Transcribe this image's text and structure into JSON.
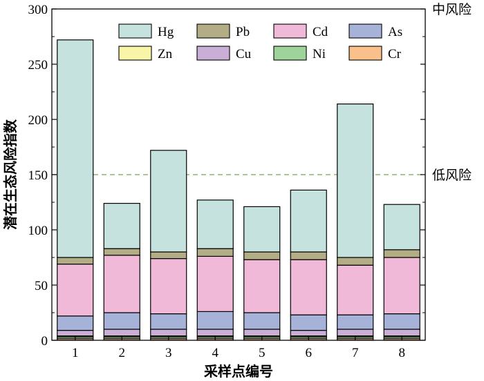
{
  "chart_data": {
    "type": "bar",
    "stacked": true,
    "xlabel": "采样点编号",
    "ylabel": "潜在生态风险指数",
    "ylim": [
      0,
      300
    ],
    "yticks": [
      0,
      50,
      100,
      150,
      200,
      250,
      300
    ],
    "categories": [
      "1",
      "2",
      "3",
      "4",
      "5",
      "6",
      "7",
      "8"
    ],
    "series": [
      {
        "name": "Cr",
        "color": "#f9c08c",
        "values": [
          1.5,
          1.5,
          1.5,
          1.5,
          1.5,
          1.5,
          1.5,
          1.5
        ]
      },
      {
        "name": "Ni",
        "color": "#9ed49b",
        "values": [
          1.5,
          1.5,
          1.5,
          1.5,
          1.5,
          1.5,
          1.5,
          1.5
        ]
      },
      {
        "name": "Zn",
        "color": "#f8f4a8",
        "values": [
          1,
          1,
          1,
          1,
          1,
          1,
          1,
          1
        ]
      },
      {
        "name": "Cu",
        "color": "#c9afd6",
        "values": [
          5,
          6,
          6,
          6,
          6,
          5,
          6,
          6
        ]
      },
      {
        "name": "As",
        "color": "#a7b2d9",
        "values": [
          13,
          15,
          14,
          16,
          15,
          14,
          13,
          14
        ]
      },
      {
        "name": "Cd",
        "color": "#f0b9d8",
        "values": [
          47,
          52,
          50,
          50,
          48,
          50,
          45,
          51
        ]
      },
      {
        "name": "Pb",
        "color": "#b2ad84",
        "values": [
          6,
          6,
          6,
          7,
          7,
          7,
          7,
          7
        ]
      },
      {
        "name": "Hg",
        "color": "#c5e2df",
        "values": [
          197,
          41,
          92,
          44,
          41,
          56,
          139,
          41
        ]
      }
    ],
    "legend": {
      "placement": "top",
      "order": [
        "Hg",
        "Pb",
        "Cd",
        "As",
        "Zn",
        "Cu",
        "Ni",
        "Cr"
      ]
    },
    "reference_lines": [
      {
        "value": 150,
        "label": "低风险",
        "style": "dashed",
        "color": "#8fb36a"
      },
      {
        "value": 300,
        "label": "中风险",
        "style": "none",
        "color": "#000000"
      }
    ],
    "grid": false
  }
}
